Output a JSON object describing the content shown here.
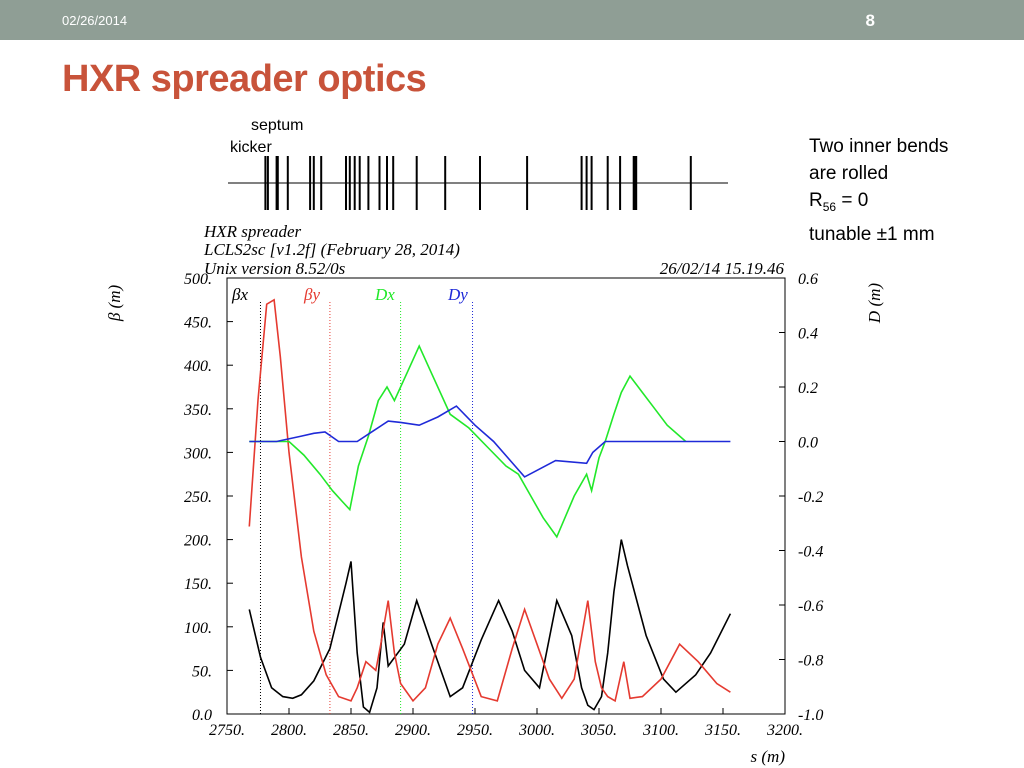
{
  "header": {
    "date": "02/26/2014",
    "page": "8"
  },
  "title": "HXR spreader optics",
  "lattice_labels": {
    "septum": "septum",
    "kicker": "kicker"
  },
  "note": {
    "line1": "Two inner bends",
    "line2": "are rolled",
    "r_main": "R",
    "r_sub": "56",
    "r_rest": " = 0",
    "line4": "tunable ±1 mm"
  },
  "plot_header": {
    "line1": "HXR spreader",
    "line2": "LCLS2sc [v1.2f] (February 28, 2014)",
    "line3": "Unix version 8.52/0s",
    "timestamp": "26/02/14  15.19.46"
  },
  "lattice_elements": [
    2781,
    2783,
    2790,
    2791,
    2799,
    2817,
    2820,
    2826,
    2846,
    2849,
    2853,
    2857,
    2864,
    2873,
    2879,
    2884,
    2903,
    2926,
    2954,
    2992,
    3036,
    3040,
    3044,
    3057,
    3067,
    3078,
    3079,
    3080,
    3124
  ],
  "chart_data": {
    "type": "line",
    "title": "",
    "xlabel": "s (m)",
    "ylabel_left": "β (m)",
    "ylabel_right": "D (m)",
    "xlim": [
      2750,
      3200
    ],
    "ylim_left": [
      0,
      500
    ],
    "ylim_right": [
      -1.0,
      0.6
    ],
    "xticks": [
      "2750.",
      "2800.",
      "2850.",
      "2900.",
      "2950.",
      "3000.",
      "3050.",
      "3100.",
      "3150.",
      "3200."
    ],
    "yticks_left": [
      "0.0",
      "50.",
      "100.",
      "150.",
      "200.",
      "250.",
      "300.",
      "350.",
      "400.",
      "450.",
      "500."
    ],
    "yticks_right": [
      "-1.0",
      "-0.8",
      "-0.6",
      "-0.4",
      "-0.2",
      "0.0",
      "0.2",
      "0.4",
      "0.6"
    ],
    "legend": [
      "βx",
      "βy",
      "Dx",
      "Dy"
    ],
    "legend_markers_x": [
      2777,
      2833,
      2890,
      2948
    ],
    "series": [
      {
        "name": "βx",
        "axis": "left",
        "color": "#000000",
        "x": [
          2768,
          2777,
          2786,
          2795,
          2803,
          2810,
          2820,
          2833,
          2846,
          2850,
          2855,
          2860,
          2865,
          2871,
          2876,
          2880,
          2893,
          2903,
          2915,
          2930,
          2940,
          2955,
          2969,
          2980,
          2990,
          3002,
          3016,
          3028,
          3036,
          3041,
          3046,
          3052,
          3057,
          3062,
          3068,
          3073,
          3088,
          3102,
          3112,
          3128,
          3140,
          3156
        ],
        "y": [
          120,
          65,
          30,
          20,
          18,
          22,
          38,
          75,
          150,
          175,
          70,
          8,
          2,
          30,
          105,
          55,
          80,
          130,
          80,
          20,
          30,
          85,
          130,
          95,
          50,
          30,
          130,
          90,
          30,
          10,
          5,
          20,
          70,
          140,
          200,
          170,
          90,
          40,
          25,
          45,
          70,
          115
        ]
      },
      {
        "name": "βy",
        "axis": "left",
        "color": "#e53a30",
        "x": [
          2768,
          2775,
          2782,
          2788,
          2793,
          2800,
          2810,
          2820,
          2830,
          2840,
          2850,
          2855,
          2862,
          2870,
          2874,
          2880,
          2885,
          2890,
          2900,
          2910,
          2920,
          2930,
          2940,
          2955,
          2968,
          2980,
          2990,
          3000,
          3010,
          3020,
          3030,
          3041,
          3047,
          3052,
          3057,
          3063,
          3070,
          3075,
          3085,
          3100,
          3115,
          3130,
          3145,
          3156
        ],
        "y": [
          215,
          360,
          470,
          475,
          410,
          300,
          180,
          95,
          45,
          20,
          15,
          30,
          60,
          50,
          80,
          130,
          70,
          35,
          15,
          30,
          80,
          110,
          75,
          20,
          15,
          75,
          120,
          80,
          40,
          18,
          40,
          130,
          60,
          30,
          20,
          15,
          60,
          18,
          20,
          40,
          80,
          60,
          35,
          25
        ]
      },
      {
        "name": "Dx",
        "axis": "right",
        "color": "#22e82a",
        "x": [
          2768,
          2792,
          2800,
          2812,
          2825,
          2835,
          2843,
          2849,
          2856,
          2864,
          2872,
          2879,
          2885,
          2895,
          2905,
          2915,
          2930,
          2945,
          2960,
          2975,
          2985,
          2995,
          3005,
          3016,
          3030,
          3040,
          3044,
          3050,
          3055,
          3062,
          3068,
          3075,
          3085,
          3095,
          3105,
          3120
        ],
        "y": [
          0.0,
          0.0,
          0.0,
          -0.05,
          -0.12,
          -0.18,
          -0.22,
          -0.25,
          -0.09,
          0.02,
          0.15,
          0.2,
          0.15,
          0.25,
          0.35,
          0.25,
          0.1,
          0.05,
          -0.02,
          -0.09,
          -0.12,
          -0.2,
          -0.28,
          -0.35,
          -0.2,
          -0.12,
          -0.18,
          -0.06,
          0.0,
          0.1,
          0.18,
          0.24,
          0.18,
          0.12,
          0.06,
          0.0
        ]
      },
      {
        "name": "Dy",
        "axis": "right",
        "color": "#1f2ad8",
        "x": [
          2768,
          2790,
          2810,
          2820,
          2829,
          2840,
          2855,
          2865,
          2880,
          2890,
          2905,
          2920,
          2935,
          2950,
          2965,
          2990,
          3015,
          3040,
          3045,
          3055,
          3070,
          3100,
          3156
        ],
        "y": [
          0.0,
          0.0,
          0.02,
          0.03,
          0.035,
          0.0,
          0.0,
          0.03,
          0.075,
          0.07,
          0.06,
          0.09,
          0.13,
          0.06,
          0.0,
          -0.13,
          -0.07,
          -0.08,
          -0.04,
          0.0,
          0.0,
          0.0,
          0.0
        ]
      }
    ]
  }
}
